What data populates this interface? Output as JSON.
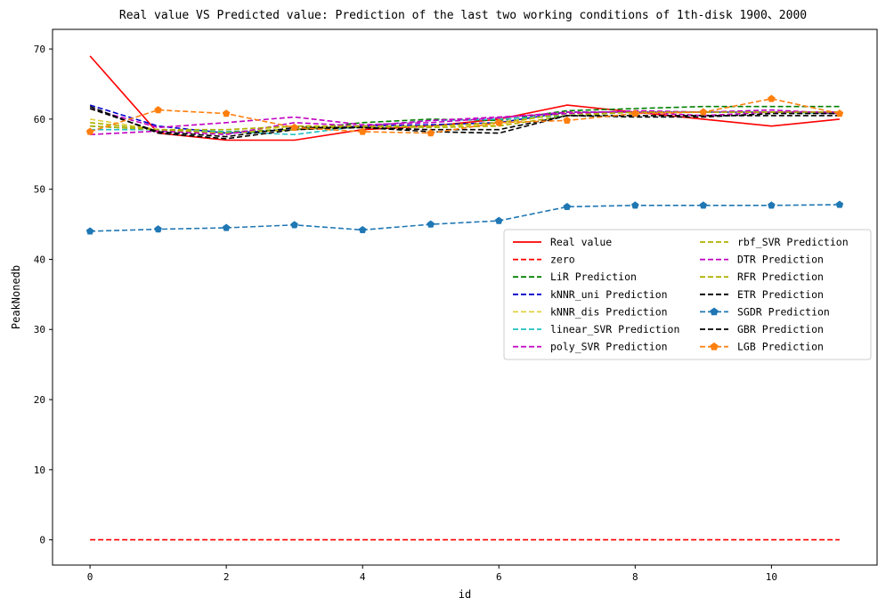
{
  "chart_data": {
    "type": "line",
    "title": "Real value VS Predicted value: Prediction of the last two working conditions of 1th-disk 1900、2000",
    "xlabel": "id",
    "ylabel": "PeakNonedb",
    "xlim": [
      -0.55,
      11.55
    ],
    "ylim": [
      -3.6,
      72.8
    ],
    "xticks": [
      0,
      2,
      4,
      6,
      8,
      10
    ],
    "yticks": [
      0,
      10,
      20,
      30,
      40,
      50,
      60,
      70
    ],
    "legend_position": "center-right",
    "legend_columns": 2,
    "x": [
      0,
      1,
      2,
      3,
      4,
      5,
      6,
      7,
      8,
      9,
      10,
      11
    ],
    "series": [
      {
        "name": "Real value",
        "color": "#ff0000",
        "dash": "solid",
        "marker": "none",
        "values": [
          69,
          58,
          57,
          57,
          58.5,
          59,
          60,
          62,
          61,
          60,
          59,
          60
        ]
      },
      {
        "name": "zero",
        "color": "#ff0000",
        "dash": "dashed",
        "marker": "none",
        "values": [
          0,
          0,
          0,
          0,
          0,
          0,
          0,
          0,
          0,
          0,
          0,
          0
        ]
      },
      {
        "name": "LiR Prediction",
        "color": "#008000",
        "dash": "dashed",
        "marker": "none",
        "values": [
          59,
          58.5,
          58.2,
          58.5,
          59.5,
          60,
          59.8,
          61.2,
          61.5,
          61.8,
          61.8,
          61.8
        ]
      },
      {
        "name": "kNNR_uni Prediction",
        "color": "#0000cc",
        "dash": "dashed",
        "marker": "none",
        "values": [
          62,
          59,
          58,
          58.5,
          59,
          59.2,
          59.5,
          61,
          61,
          61,
          61,
          61
        ]
      },
      {
        "name": "kNNR_dis Prediction",
        "color": "#e0d040",
        "dash": "dashed",
        "marker": "none",
        "values": [
          60,
          58.5,
          58,
          59,
          58.8,
          59,
          59.2,
          61,
          61,
          61,
          61,
          61
        ]
      },
      {
        "name": "linear_SVR Prediction",
        "color": "#20c0c0",
        "dash": "dashed",
        "marker": "none",
        "values": [
          58.5,
          58.5,
          58.2,
          57.8,
          59,
          59.8,
          60,
          60.5,
          61,
          61,
          61,
          60.8
        ]
      },
      {
        "name": "poly_SVR Prediction",
        "color": "#c000c0",
        "dash": "dashed",
        "marker": "none",
        "values": [
          61.5,
          58.8,
          59.5,
          60.3,
          59.2,
          59.5,
          60.2,
          61,
          61,
          60.5,
          61,
          61
        ]
      },
      {
        "name": "rbf_SVR Prediction",
        "color": "#b0b000",
        "dash": "dashed",
        "marker": "none",
        "values": [
          59.5,
          58.5,
          58,
          58.5,
          59,
          59,
          59.5,
          60.8,
          61,
          61,
          61,
          61
        ]
      },
      {
        "name": "DTR Prediction",
        "color": "#c000c0",
        "dash": "dashed",
        "marker": "none",
        "values": [
          57.8,
          58.3,
          57.8,
          59.5,
          59,
          59.8,
          60.3,
          60.8,
          61.2,
          61,
          61.3,
          60.8
        ]
      },
      {
        "name": "RFR Prediction",
        "color": "#b0b000",
        "dash": "dashed",
        "marker": "none",
        "values": [
          59,
          58.5,
          58.5,
          59,
          59,
          58.8,
          59,
          60.5,
          61,
          61,
          61,
          61
        ]
      },
      {
        "name": "ETR Prediction",
        "color": "#000000",
        "dash": "dashed",
        "marker": "none",
        "values": [
          61.5,
          58.2,
          57.5,
          58.8,
          58.8,
          58.5,
          58.5,
          60.5,
          60.3,
          60.3,
          60.8,
          60.8
        ]
      },
      {
        "name": "SGDR Prediction",
        "color": "#1f77b4",
        "dash": "dashed",
        "marker": "pentagon",
        "values": [
          44,
          44.3,
          44.5,
          44.9,
          44.2,
          45,
          45.5,
          47.5,
          47.7,
          47.7,
          47.7,
          47.8
        ]
      },
      {
        "name": "GBR Prediction",
        "color": "#000000",
        "dash": "dashed",
        "marker": "none",
        "values": [
          61.8,
          58,
          57.2,
          58.5,
          58.8,
          58.2,
          58,
          60.5,
          60.5,
          60.5,
          60.5,
          60.5
        ]
      },
      {
        "name": "LGB Prediction",
        "color": "#ff7f0e",
        "dash": "dashed",
        "marker": "pentagon",
        "values": [
          58.2,
          61.3,
          60.8,
          58.8,
          58.2,
          58,
          59.5,
          59.8,
          60.8,
          61,
          62.9,
          60.8
        ]
      }
    ]
  }
}
